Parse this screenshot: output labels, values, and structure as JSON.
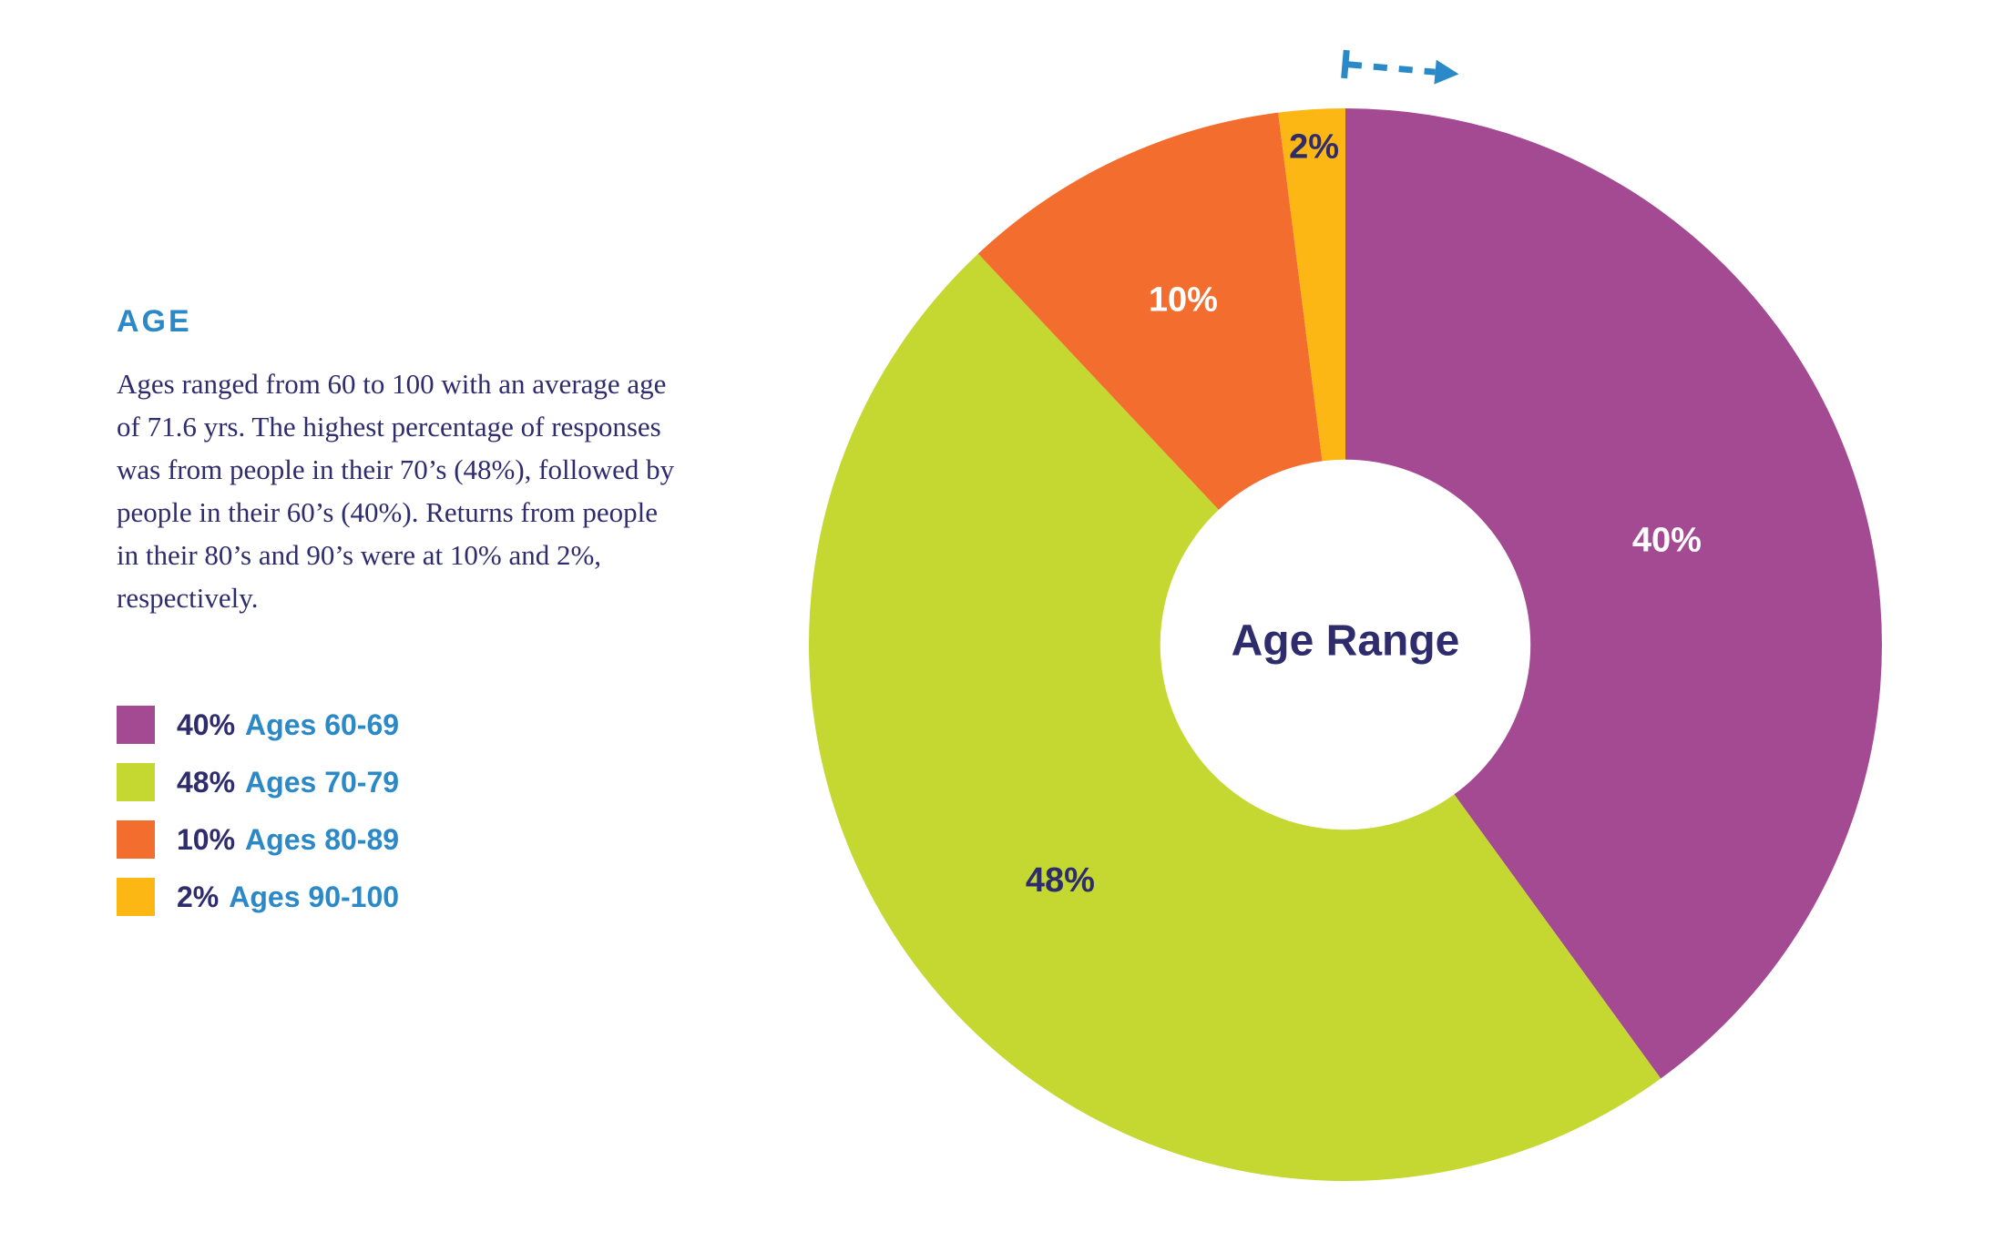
{
  "colors": {
    "navy": "#2F2C6E",
    "blue": "#2C89C7",
    "background": "#FFFFFF"
  },
  "section": {
    "heading": "AGE",
    "paragraph": "Ages ranged from 60 to 100 with an average age of 71.6 yrs. The highest percentage of responses was from people in their 70’s (48%), followed by people in their 60’s (40%). Returns from people in their 80’s and 90’s were at 10% and 2%, respectively."
  },
  "arrow": {
    "icon": "dashed-clockwise-direction-arrow-icon",
    "color": "#2C89C7"
  },
  "chart_data": {
    "type": "pie",
    "subtype": "donut",
    "title": "Age Range",
    "center_label": "Age Range",
    "direction": "clockwise",
    "start_angle_deg": 0,
    "donut_hole_frac": 0.345,
    "legend_position": "left",
    "slices": [
      {
        "pct": 40,
        "pct_label": "40%",
        "category": "Ages 60-69",
        "color": "#A34A93",
        "pct_label_color": "#FFFFFF",
        "label_r_frac": 0.63
      },
      {
        "pct": 48,
        "pct_label": "48%",
        "category": "Ages 70-79",
        "color": "#C5D831",
        "pct_label_color": "#2F2C6E",
        "label_r_frac": 0.69
      },
      {
        "pct": 10,
        "pct_label": "10%",
        "category": "Ages 80-89",
        "color": "#F26D2E",
        "pct_label_color": "#FFFFFF",
        "label_r_frac": 0.71
      },
      {
        "pct": 2,
        "pct_label": "2%",
        "category": "Ages 90-100",
        "color": "#FDB714",
        "pct_label_color": "#2F2C6E",
        "label_r_frac": 0.93
      }
    ]
  }
}
